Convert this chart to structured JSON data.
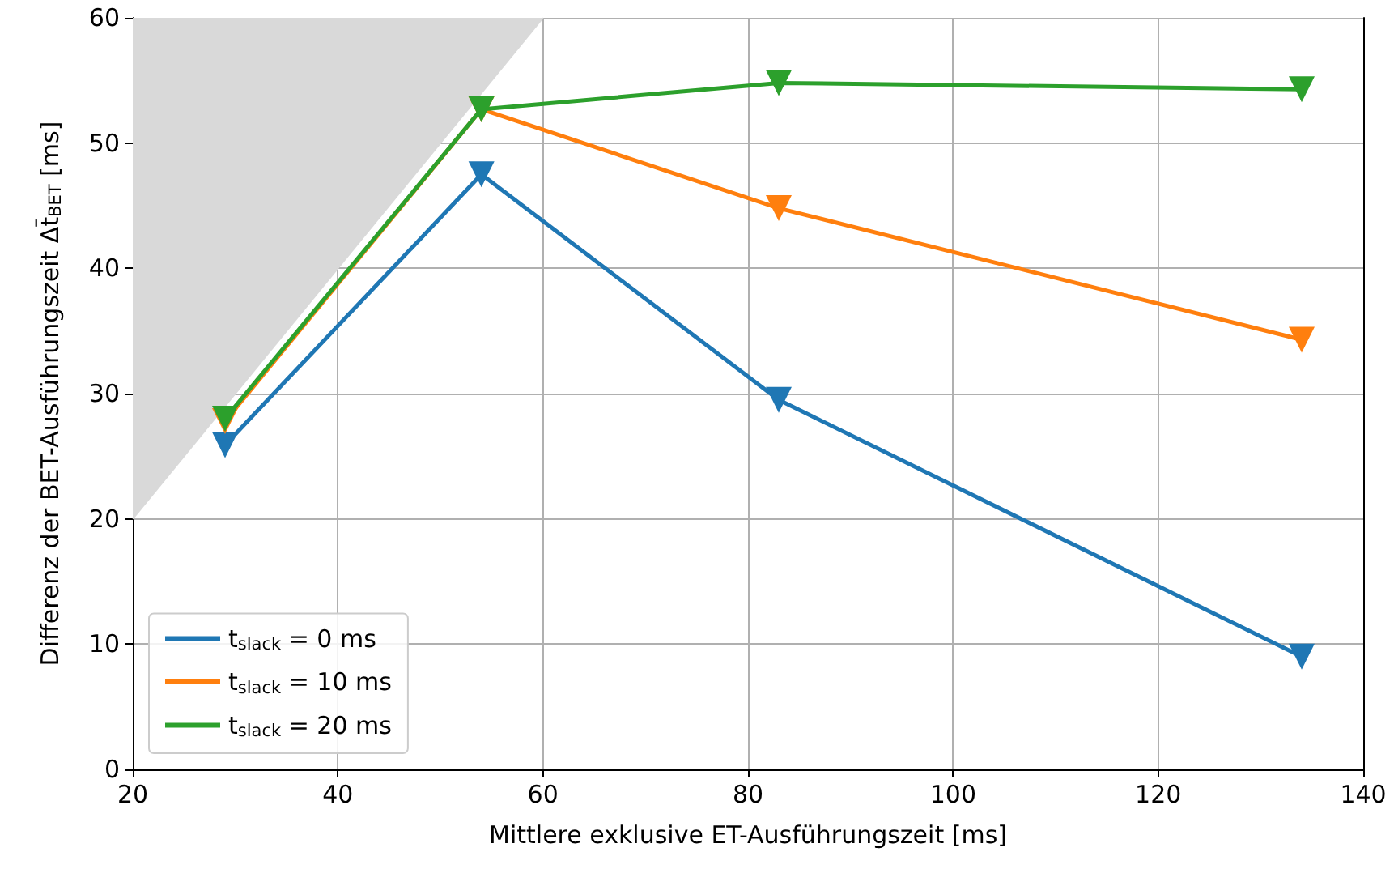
{
  "chart_data": {
    "type": "line",
    "xlabel": "Mittlere exklusive ET-Ausführungszeit [ms]",
    "ylabel": "Differenz der BET-Ausführungszeit Δt̄$_{BET}$ [ms]",
    "x": [
      29,
      54,
      83,
      134
    ],
    "series": [
      {
        "type": "area",
        "color": "#d9d9d9",
        "x": [
          20,
          60
        ],
        "values": [
          20,
          60
        ],
        "marker": "none"
      },
      {
        "name": "t$_{slack}$ = 0 ms",
        "color": "#1f77b4",
        "values": [
          25.9,
          47.5,
          29.5,
          9.0
        ]
      },
      {
        "name": "t$_{slack}$ = 10 ms",
        "color": "#ff7f0e",
        "values": [
          27.8,
          52.7,
          44.8,
          34.3
        ]
      },
      {
        "name": "t$_{slack}$ = 20 ms",
        "color": "#2ca02c",
        "values": [
          28.0,
          52.7,
          54.8,
          54.3
        ]
      }
    ],
    "xlim": [
      20,
      140
    ],
    "xticks": [
      20,
      40,
      60,
      80,
      100,
      120,
      140
    ],
    "ylim": [
      0,
      60
    ],
    "yticks": [
      0,
      10,
      20,
      30,
      40,
      50,
      60
    ],
    "grid": true,
    "legend": "bottom left",
    "marker": "triangle",
    "line_style": "solid"
  }
}
